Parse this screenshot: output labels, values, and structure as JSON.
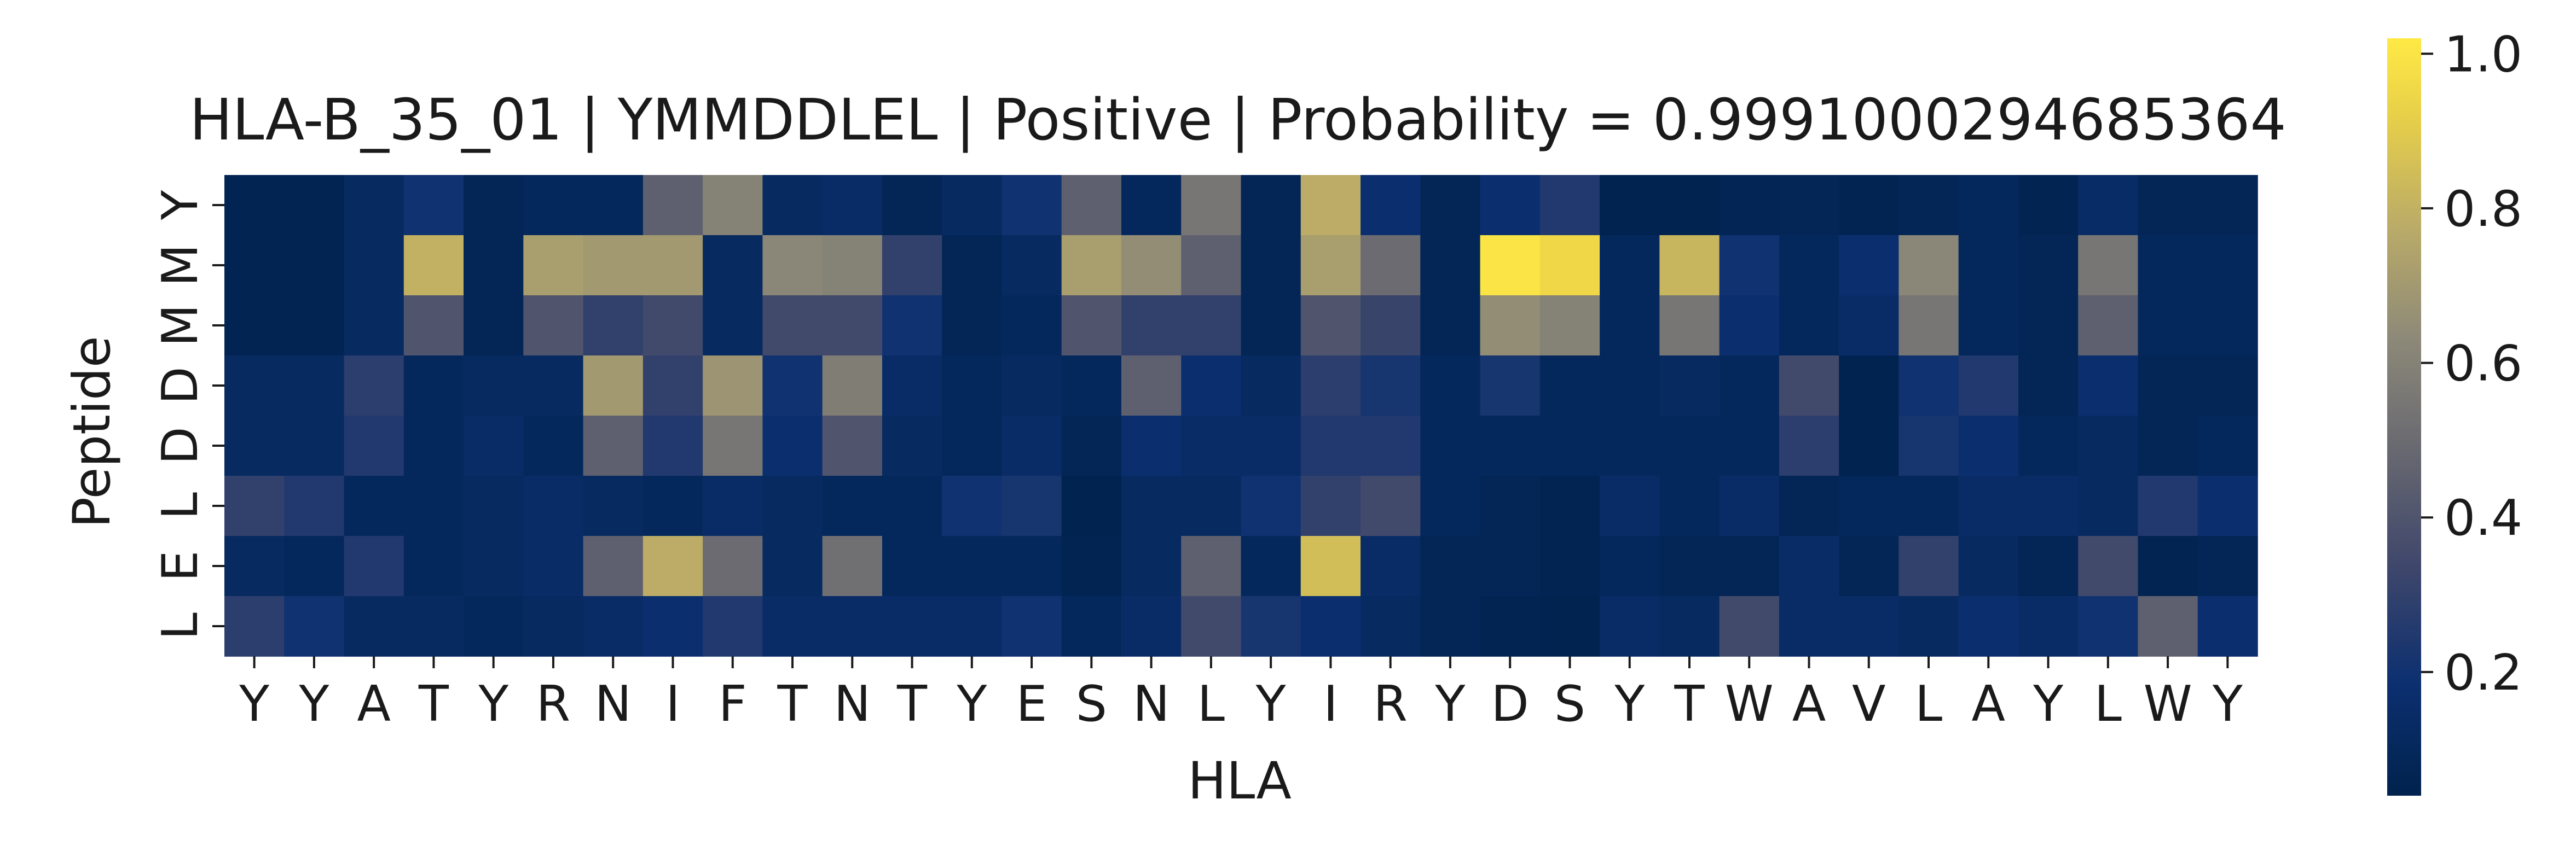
{
  "chart_data": {
    "type": "heatmap",
    "title": "HLA-B_35_01 | YMMDDLEL | Positive | Probability = 0.9991000294685364",
    "xlabel": "HLA",
    "ylabel": "Peptide",
    "x_categories": [
      "Y",
      "Y",
      "A",
      "T",
      "Y",
      "R",
      "N",
      "I",
      "F",
      "T",
      "N",
      "T",
      "Y",
      "E",
      "S",
      "N",
      "L",
      "Y",
      "I",
      "R",
      "Y",
      "D",
      "S",
      "Y",
      "T",
      "W",
      "A",
      "V",
      "L",
      "A",
      "Y",
      "L",
      "W",
      "Y"
    ],
    "y_categories": [
      "Y",
      "M",
      "M",
      "D",
      "D",
      "L",
      "E",
      "L"
    ],
    "colormap": "cividis",
    "colorbar": {
      "min": 0.04,
      "max": 1.02,
      "ticks": [
        0.2,
        0.4,
        0.6,
        0.8,
        1.0
      ],
      "tick_labels": [
        "0.2",
        "0.4",
        "0.6",
        "0.8",
        "1.0"
      ]
    },
    "values": [
      [
        0.06,
        0.06,
        0.12,
        0.2,
        0.08,
        0.1,
        0.1,
        0.45,
        0.6,
        0.12,
        0.15,
        0.08,
        0.12,
        0.2,
        0.45,
        0.1,
        0.55,
        0.08,
        0.78,
        0.18,
        0.08,
        0.18,
        0.25,
        0.05,
        0.05,
        0.07,
        0.08,
        0.06,
        0.08,
        0.1,
        0.06,
        0.14,
        0.08,
        0.08
      ],
      [
        0.06,
        0.06,
        0.12,
        0.8,
        0.08,
        0.72,
        0.7,
        0.7,
        0.12,
        0.62,
        0.6,
        0.3,
        0.08,
        0.12,
        0.72,
        0.65,
        0.45,
        0.08,
        0.72,
        0.5,
        0.08,
        1.0,
        0.95,
        0.1,
        0.82,
        0.2,
        0.1,
        0.18,
        0.62,
        0.1,
        0.08,
        0.55,
        0.1,
        0.1
      ],
      [
        0.06,
        0.06,
        0.12,
        0.4,
        0.08,
        0.4,
        0.3,
        0.35,
        0.12,
        0.35,
        0.35,
        0.2,
        0.08,
        0.1,
        0.4,
        0.3,
        0.3,
        0.08,
        0.4,
        0.32,
        0.08,
        0.65,
        0.6,
        0.1,
        0.55,
        0.18,
        0.1,
        0.15,
        0.55,
        0.1,
        0.08,
        0.45,
        0.1,
        0.1
      ],
      [
        0.12,
        0.12,
        0.28,
        0.1,
        0.12,
        0.12,
        0.7,
        0.3,
        0.68,
        0.2,
        0.58,
        0.15,
        0.1,
        0.12,
        0.1,
        0.45,
        0.18,
        0.12,
        0.28,
        0.22,
        0.1,
        0.22,
        0.1,
        0.1,
        0.12,
        0.1,
        0.35,
        0.05,
        0.2,
        0.25,
        0.08,
        0.18,
        0.08,
        0.08
      ],
      [
        0.12,
        0.12,
        0.25,
        0.1,
        0.15,
        0.1,
        0.45,
        0.25,
        0.55,
        0.18,
        0.4,
        0.12,
        0.1,
        0.15,
        0.08,
        0.18,
        0.15,
        0.15,
        0.25,
        0.25,
        0.1,
        0.1,
        0.1,
        0.1,
        0.1,
        0.1,
        0.28,
        0.05,
        0.22,
        0.18,
        0.1,
        0.12,
        0.08,
        0.1
      ],
      [
        0.3,
        0.25,
        0.1,
        0.1,
        0.12,
        0.15,
        0.12,
        0.1,
        0.15,
        0.12,
        0.1,
        0.1,
        0.2,
        0.22,
        0.05,
        0.12,
        0.12,
        0.2,
        0.3,
        0.35,
        0.1,
        0.08,
        0.06,
        0.15,
        0.1,
        0.15,
        0.08,
        0.1,
        0.1,
        0.15,
        0.15,
        0.12,
        0.25,
        0.18
      ],
      [
        0.12,
        0.1,
        0.25,
        0.1,
        0.12,
        0.15,
        0.45,
        0.78,
        0.5,
        0.12,
        0.52,
        0.1,
        0.1,
        0.1,
        0.06,
        0.12,
        0.45,
        0.1,
        0.85,
        0.15,
        0.08,
        0.08,
        0.06,
        0.1,
        0.08,
        0.08,
        0.15,
        0.08,
        0.3,
        0.12,
        0.08,
        0.35,
        0.06,
        0.08
      ],
      [
        0.28,
        0.2,
        0.12,
        0.12,
        0.1,
        0.12,
        0.15,
        0.18,
        0.25,
        0.15,
        0.15,
        0.15,
        0.15,
        0.2,
        0.1,
        0.15,
        0.35,
        0.22,
        0.18,
        0.12,
        0.08,
        0.06,
        0.05,
        0.15,
        0.12,
        0.35,
        0.15,
        0.15,
        0.12,
        0.18,
        0.15,
        0.2,
        0.45,
        0.18
      ]
    ]
  }
}
